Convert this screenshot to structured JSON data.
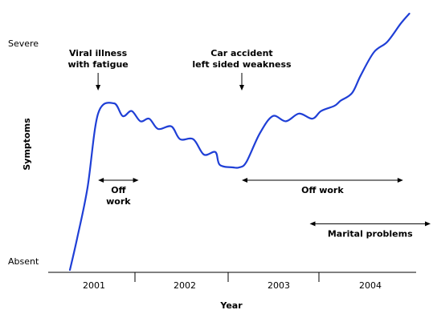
{
  "chart_data": {
    "type": "line",
    "title": "",
    "xlabel": "Year",
    "ylabel": "Symptoms",
    "x_ticks": [
      "2001",
      "2002",
      "2003",
      "2004"
    ],
    "y_ticks": [
      "Absent",
      "Severe"
    ],
    "xlim": [
      2000.6,
      2004.5
    ],
    "ylim": [
      0,
      10
    ],
    "grid": false,
    "colors": {
      "line": "#1f3fd6",
      "text": "#000000"
    },
    "series": [
      {
        "values_description_free": true,
        "x": [
          2000.6,
          2000.68,
          2000.8,
          2000.92,
          2001.1,
          2001.2,
          2001.3,
          2001.4,
          2001.5,
          2001.6,
          2001.75,
          2001.85,
          2002.0,
          2002.12,
          2002.25,
          2002.3,
          2002.45,
          2002.52,
          2002.6,
          2002.75,
          2002.9,
          2003.05,
          2003.2,
          2003.35,
          2003.45,
          2003.6,
          2003.67,
          2003.8,
          2003.9,
          2004.05,
          2004.2,
          2004.35,
          2004.45
        ],
        "y": [
          0.0,
          1.2,
          3.2,
          6.1,
          6.5,
          6.0,
          6.2,
          5.8,
          5.9,
          5.5,
          5.6,
          5.1,
          5.1,
          4.5,
          4.6,
          4.1,
          4.0,
          4.0,
          4.2,
          5.3,
          6.0,
          5.8,
          6.1,
          5.9,
          6.2,
          6.4,
          6.6,
          6.9,
          7.6,
          8.5,
          8.9,
          9.6,
          10.0
        ]
      }
    ],
    "annotations": [
      {
        "label_lines": [
          "Viral illness",
          "with fatigue"
        ],
        "x": 2000.92
      },
      {
        "label_lines": [
          "Car accident",
          "left sided weakness"
        ],
        "x": 2002.55
      }
    ],
    "periods": [
      {
        "label_lines": [
          "Off",
          "work"
        ],
        "x_start": 2000.92,
        "x_end": 2001.38,
        "y": 3.5
      },
      {
        "label_lines": [
          "Off work"
        ],
        "x_start": 2002.55,
        "x_end": 2004.38,
        "y": 3.5
      },
      {
        "label_lines": [
          "Marital problems"
        ],
        "x_start": 2003.32,
        "x_end": 2004.75,
        "y": 1.8
      }
    ]
  }
}
